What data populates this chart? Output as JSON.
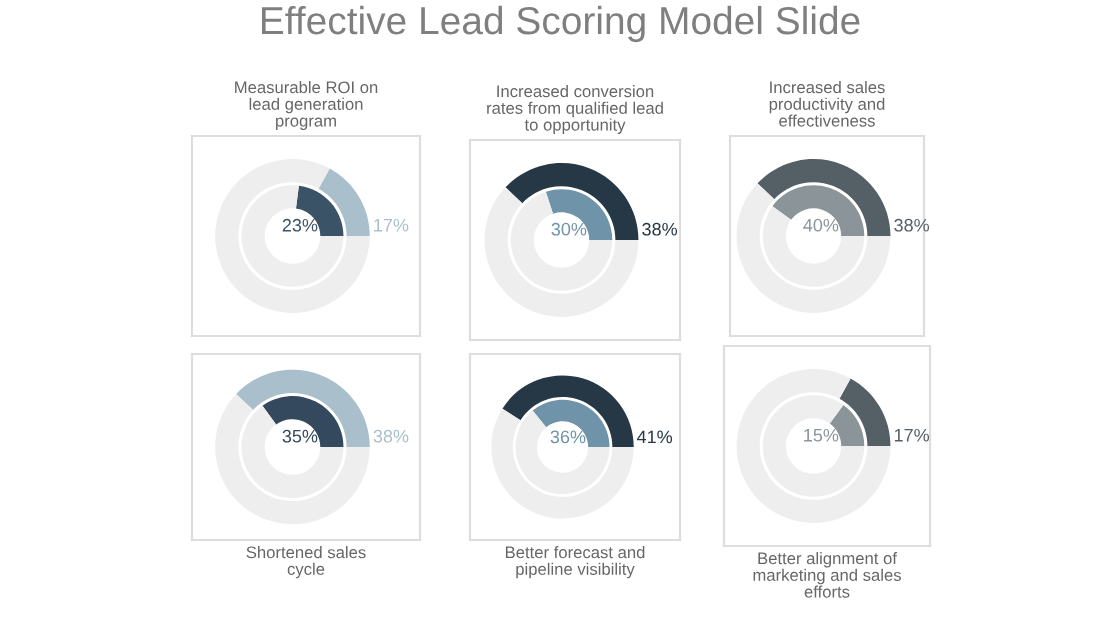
{
  "chart_data": [
    {
      "type": "other",
      "title": "Effective Lead Scoring Model Slide"
    },
    {
      "type": "donut",
      "title": "Measurable ROI on\nlead generation\nprogram",
      "series": [
        {
          "colors": [
            "#3b5366",
            "#eeeeee"
          ],
          "values": [
            23,
            77
          ],
          "value_labels": [
            "23%",
            null
          ]
        },
        {
          "colors": [
            "#a9bfcc",
            "#eeeeee"
          ],
          "values": [
            17,
            83
          ],
          "value_labels": [
            "17%",
            null
          ]
        }
      ]
    },
    {
      "type": "donut",
      "title": "Increased conversion\nrates from qualified lead\nto opportunity",
      "series": [
        {
          "colors": [
            "#6f93a8",
            "#eeeeee"
          ],
          "values": [
            30,
            70
          ],
          "value_labels": [
            "30%",
            null
          ]
        },
        {
          "colors": [
            "#263845",
            "#eeeeee"
          ],
          "values": [
            38,
            62
          ],
          "value_labels": [
            "38%",
            null
          ]
        }
      ]
    },
    {
      "type": "donut",
      "title": "Increased sales\nproductivity and\neffectiveness",
      "series": [
        {
          "colors": [
            "#8a9499",
            "#eeeeee"
          ],
          "values": [
            40,
            60
          ],
          "value_labels": [
            "40%",
            null
          ]
        },
        {
          "colors": [
            "#555f66",
            "#eeeeee"
          ],
          "values": [
            38,
            62
          ],
          "value_labels": [
            "38%",
            null
          ]
        }
      ]
    },
    {
      "type": "donut",
      "xlabel": "Shortened sales\ncycle",
      "series": [
        {
          "colors": [
            "#34495e",
            "#eeeeee"
          ],
          "values": [
            35,
            65
          ],
          "value_labels": [
            "35%",
            null
          ]
        },
        {
          "colors": [
            "#a9bfcc",
            "#eeeeee"
          ],
          "values": [
            38,
            62
          ],
          "value_labels": [
            "38%",
            null
          ]
        }
      ]
    },
    {
      "type": "donut",
      "xlabel": "Better forecast and\npipeline visibility",
      "series": [
        {
          "colors": [
            "#6f93a8",
            "#eeeeee"
          ],
          "values": [
            36,
            64
          ],
          "value_labels": [
            "36%",
            null
          ]
        },
        {
          "colors": [
            "#263845",
            "#eeeeee"
          ],
          "values": [
            41,
            59
          ],
          "value_labels": [
            "41%",
            null
          ]
        }
      ]
    },
    {
      "type": "donut",
      "xlabel": "Better alignment of\nmarketing and sales\nefforts",
      "series": [
        {
          "colors": [
            "#8a9499",
            "#eeeeee"
          ],
          "values": [
            15,
            85
          ],
          "value_labels": [
            "15%",
            null
          ]
        },
        {
          "colors": [
            "#555f66",
            "#eeeeee"
          ],
          "values": [
            17,
            83
          ],
          "value_labels": [
            "17%",
            null
          ]
        }
      ]
    }
  ]
}
